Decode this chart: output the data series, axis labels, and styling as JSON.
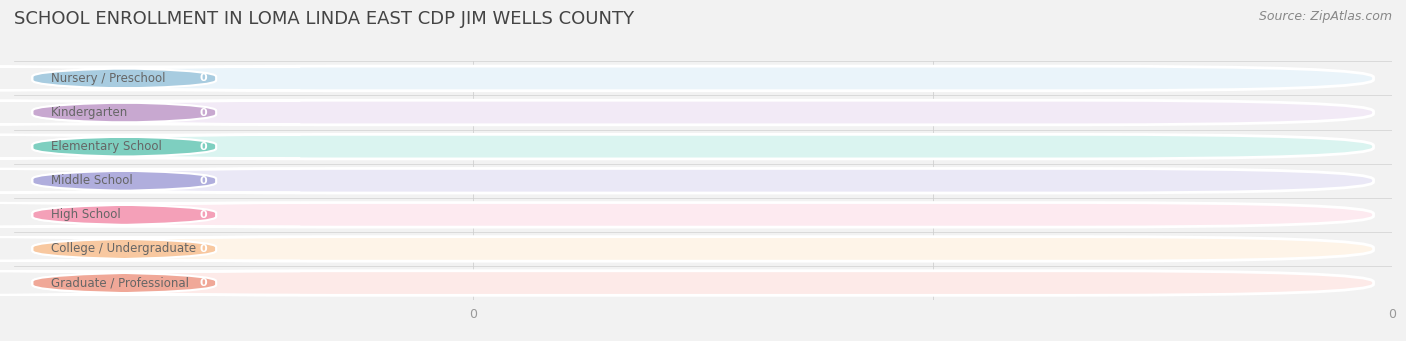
{
  "title": "SCHOOL ENROLLMENT IN LOMA LINDA EAST CDP JIM WELLS COUNTY",
  "source": "Source: ZipAtlas.com",
  "categories": [
    "Nursery / Preschool",
    "Kindergarten",
    "Elementary School",
    "Middle School",
    "High School",
    "College / Undergraduate",
    "Graduate / Professional"
  ],
  "values": [
    0,
    0,
    0,
    0,
    0,
    0,
    0
  ],
  "bar_colors": [
    "#a8cce0",
    "#c8a8d0",
    "#7ecfc0",
    "#b0aedd",
    "#f4a0b8",
    "#f8c8a0",
    "#f0a898"
  ],
  "bar_bg_colors": [
    "#eaf4fa",
    "#f2eaf6",
    "#daf4f0",
    "#eae8f6",
    "#fdeaf0",
    "#fef4e8",
    "#fdeae8"
  ],
  "background_color": "#f2f2f2",
  "title_fontsize": 13,
  "source_fontsize": 9,
  "bar_height": 0.72
}
